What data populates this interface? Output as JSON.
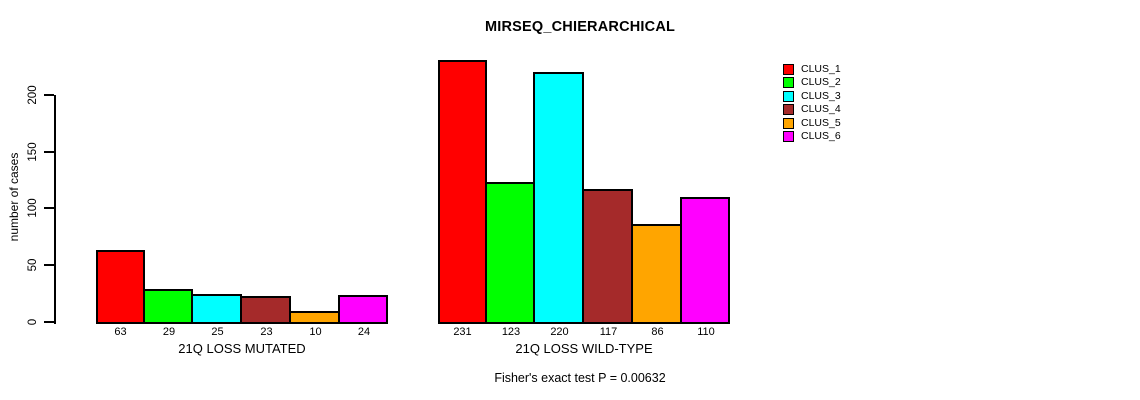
{
  "chart_data": {
    "type": "bar",
    "title": "MIRSEQ_CHIERARCHICAL",
    "xlabel": "",
    "ylabel": "number of cases",
    "ylim": [
      0,
      231
    ],
    "yticks": [
      0,
      50,
      100,
      150,
      200
    ],
    "grid": false,
    "legend_position": "right",
    "annotation": "Fisher's exact test P = 0.00632",
    "categories": [
      "21Q LOSS MUTATED",
      "21Q LOSS WILD-TYPE"
    ],
    "series": [
      {
        "name": "CLUS_1",
        "color": "#FF0000",
        "values": [
          63,
          231
        ]
      },
      {
        "name": "CLUS_2",
        "color": "#00FF00",
        "values": [
          29,
          123
        ]
      },
      {
        "name": "CLUS_3",
        "color": "#00FFFF",
        "values": [
          25,
          220
        ]
      },
      {
        "name": "CLUS_4",
        "color": "#A52A2A",
        "values": [
          23,
          117
        ]
      },
      {
        "name": "CLUS_5",
        "color": "#FFA500",
        "values": [
          10,
          86
        ]
      },
      {
        "name": "CLUS_6",
        "color": "#FF00FF",
        "values": [
          24,
          110
        ]
      }
    ],
    "bar_value_labels": [
      [
        "63",
        "29",
        "25",
        "23",
        "10",
        "24"
      ],
      [
        "231",
        "123",
        "220",
        "117",
        "86",
        "110"
      ]
    ],
    "colors": {
      "background": "#FFFFFF",
      "axis": "#000000",
      "text": "#000000"
    }
  }
}
